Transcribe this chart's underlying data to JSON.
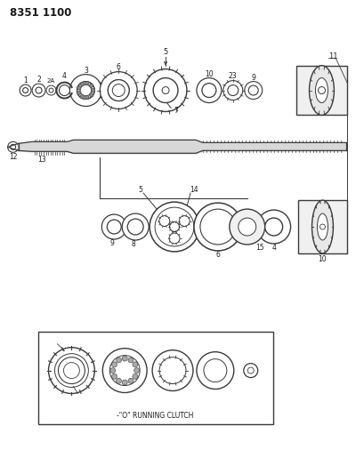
{
  "title": "8351 1100",
  "background_color": "#ffffff",
  "line_color": "#3a3a3a",
  "text_color": "#1a1a1a",
  "fig_width": 4.1,
  "fig_height": 5.33,
  "dpi": 100
}
